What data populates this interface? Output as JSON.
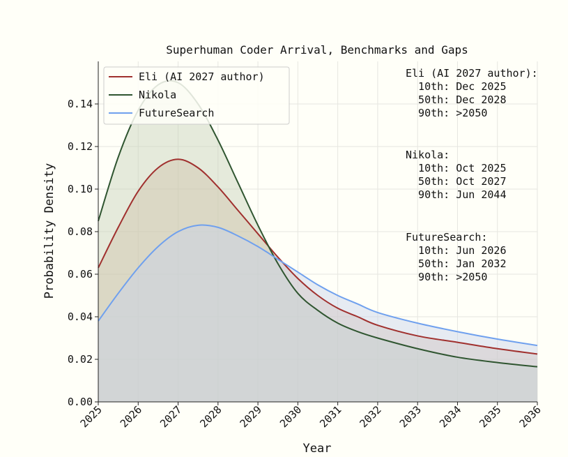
{
  "chart_data": {
    "type": "area",
    "title": "Superhuman Coder Arrival, Benchmarks and Gaps",
    "xlabel": "Year",
    "ylabel": "Probability Density",
    "xlim": [
      2025,
      2036
    ],
    "ylim": [
      0,
      0.16
    ],
    "grid": true,
    "legend_position": "top-left",
    "x_ticks": [
      "2025",
      "2026",
      "2027",
      "2028",
      "2029",
      "2030",
      "2031",
      "2032",
      "2033",
      "2034",
      "2035",
      "2036"
    ],
    "y_ticks": [
      "0.00",
      "0.02",
      "0.04",
      "0.06",
      "0.08",
      "0.10",
      "0.12",
      "0.14"
    ],
    "series": [
      {
        "name": "Eli (AI 2027 author)",
        "color": "#a0302e",
        "fill": "#d6b89e",
        "x": [
          2025,
          2025.5,
          2026,
          2026.5,
          2027,
          2027.5,
          2028,
          2028.5,
          2029,
          2029.5,
          2030,
          2030.5,
          2031,
          2031.5,
          2032,
          2033,
          2034,
          2035,
          2036
        ],
        "values": [
          0.063,
          0.082,
          0.099,
          0.11,
          0.114,
          0.11,
          0.101,
          0.09,
          0.079,
          0.068,
          0.058,
          0.05,
          0.044,
          0.04,
          0.036,
          0.031,
          0.028,
          0.025,
          0.0225
        ]
      },
      {
        "name": "Nikola",
        "color": "#2f5530",
        "fill": "#c5d0b9",
        "x": [
          2025,
          2025.5,
          2026,
          2026.5,
          2027,
          2027.5,
          2028,
          2028.5,
          2029,
          2029.5,
          2030,
          2030.5,
          2031,
          2031.5,
          2032,
          2033,
          2034,
          2035,
          2036
        ],
        "values": [
          0.085,
          0.115,
          0.137,
          0.149,
          0.15,
          0.14,
          0.123,
          0.103,
          0.083,
          0.065,
          0.051,
          0.043,
          0.037,
          0.033,
          0.03,
          0.025,
          0.021,
          0.0185,
          0.0165
        ]
      },
      {
        "name": "FutureSearch",
        "color": "#6fa0ee",
        "fill": "#c8d2ea",
        "x": [
          2025,
          2025.5,
          2026,
          2026.5,
          2027,
          2027.5,
          2028,
          2028.5,
          2029,
          2029.5,
          2030,
          2030.5,
          2031,
          2031.5,
          2032,
          2033,
          2034,
          2035,
          2036
        ],
        "values": [
          0.038,
          0.051,
          0.063,
          0.073,
          0.08,
          0.083,
          0.082,
          0.078,
          0.073,
          0.067,
          0.061,
          0.055,
          0.05,
          0.046,
          0.042,
          0.037,
          0.033,
          0.0295,
          0.0265
        ]
      }
    ],
    "annotations": [
      {
        "lines": [
          "Eli (AI 2027 author):",
          "  10th: Dec 2025",
          "  50th: Dec 2028",
          "  90th: >2050"
        ]
      },
      {
        "lines": [
          "Nikola:",
          "  10th: Oct 2025",
          "  50th: Oct 2027",
          "  90th: Jun 2044"
        ]
      },
      {
        "lines": [
          "FutureSearch:",
          "  10th: Jun 2026",
          "  50th: Jan 2032",
          "  90th: >2050"
        ]
      }
    ]
  }
}
